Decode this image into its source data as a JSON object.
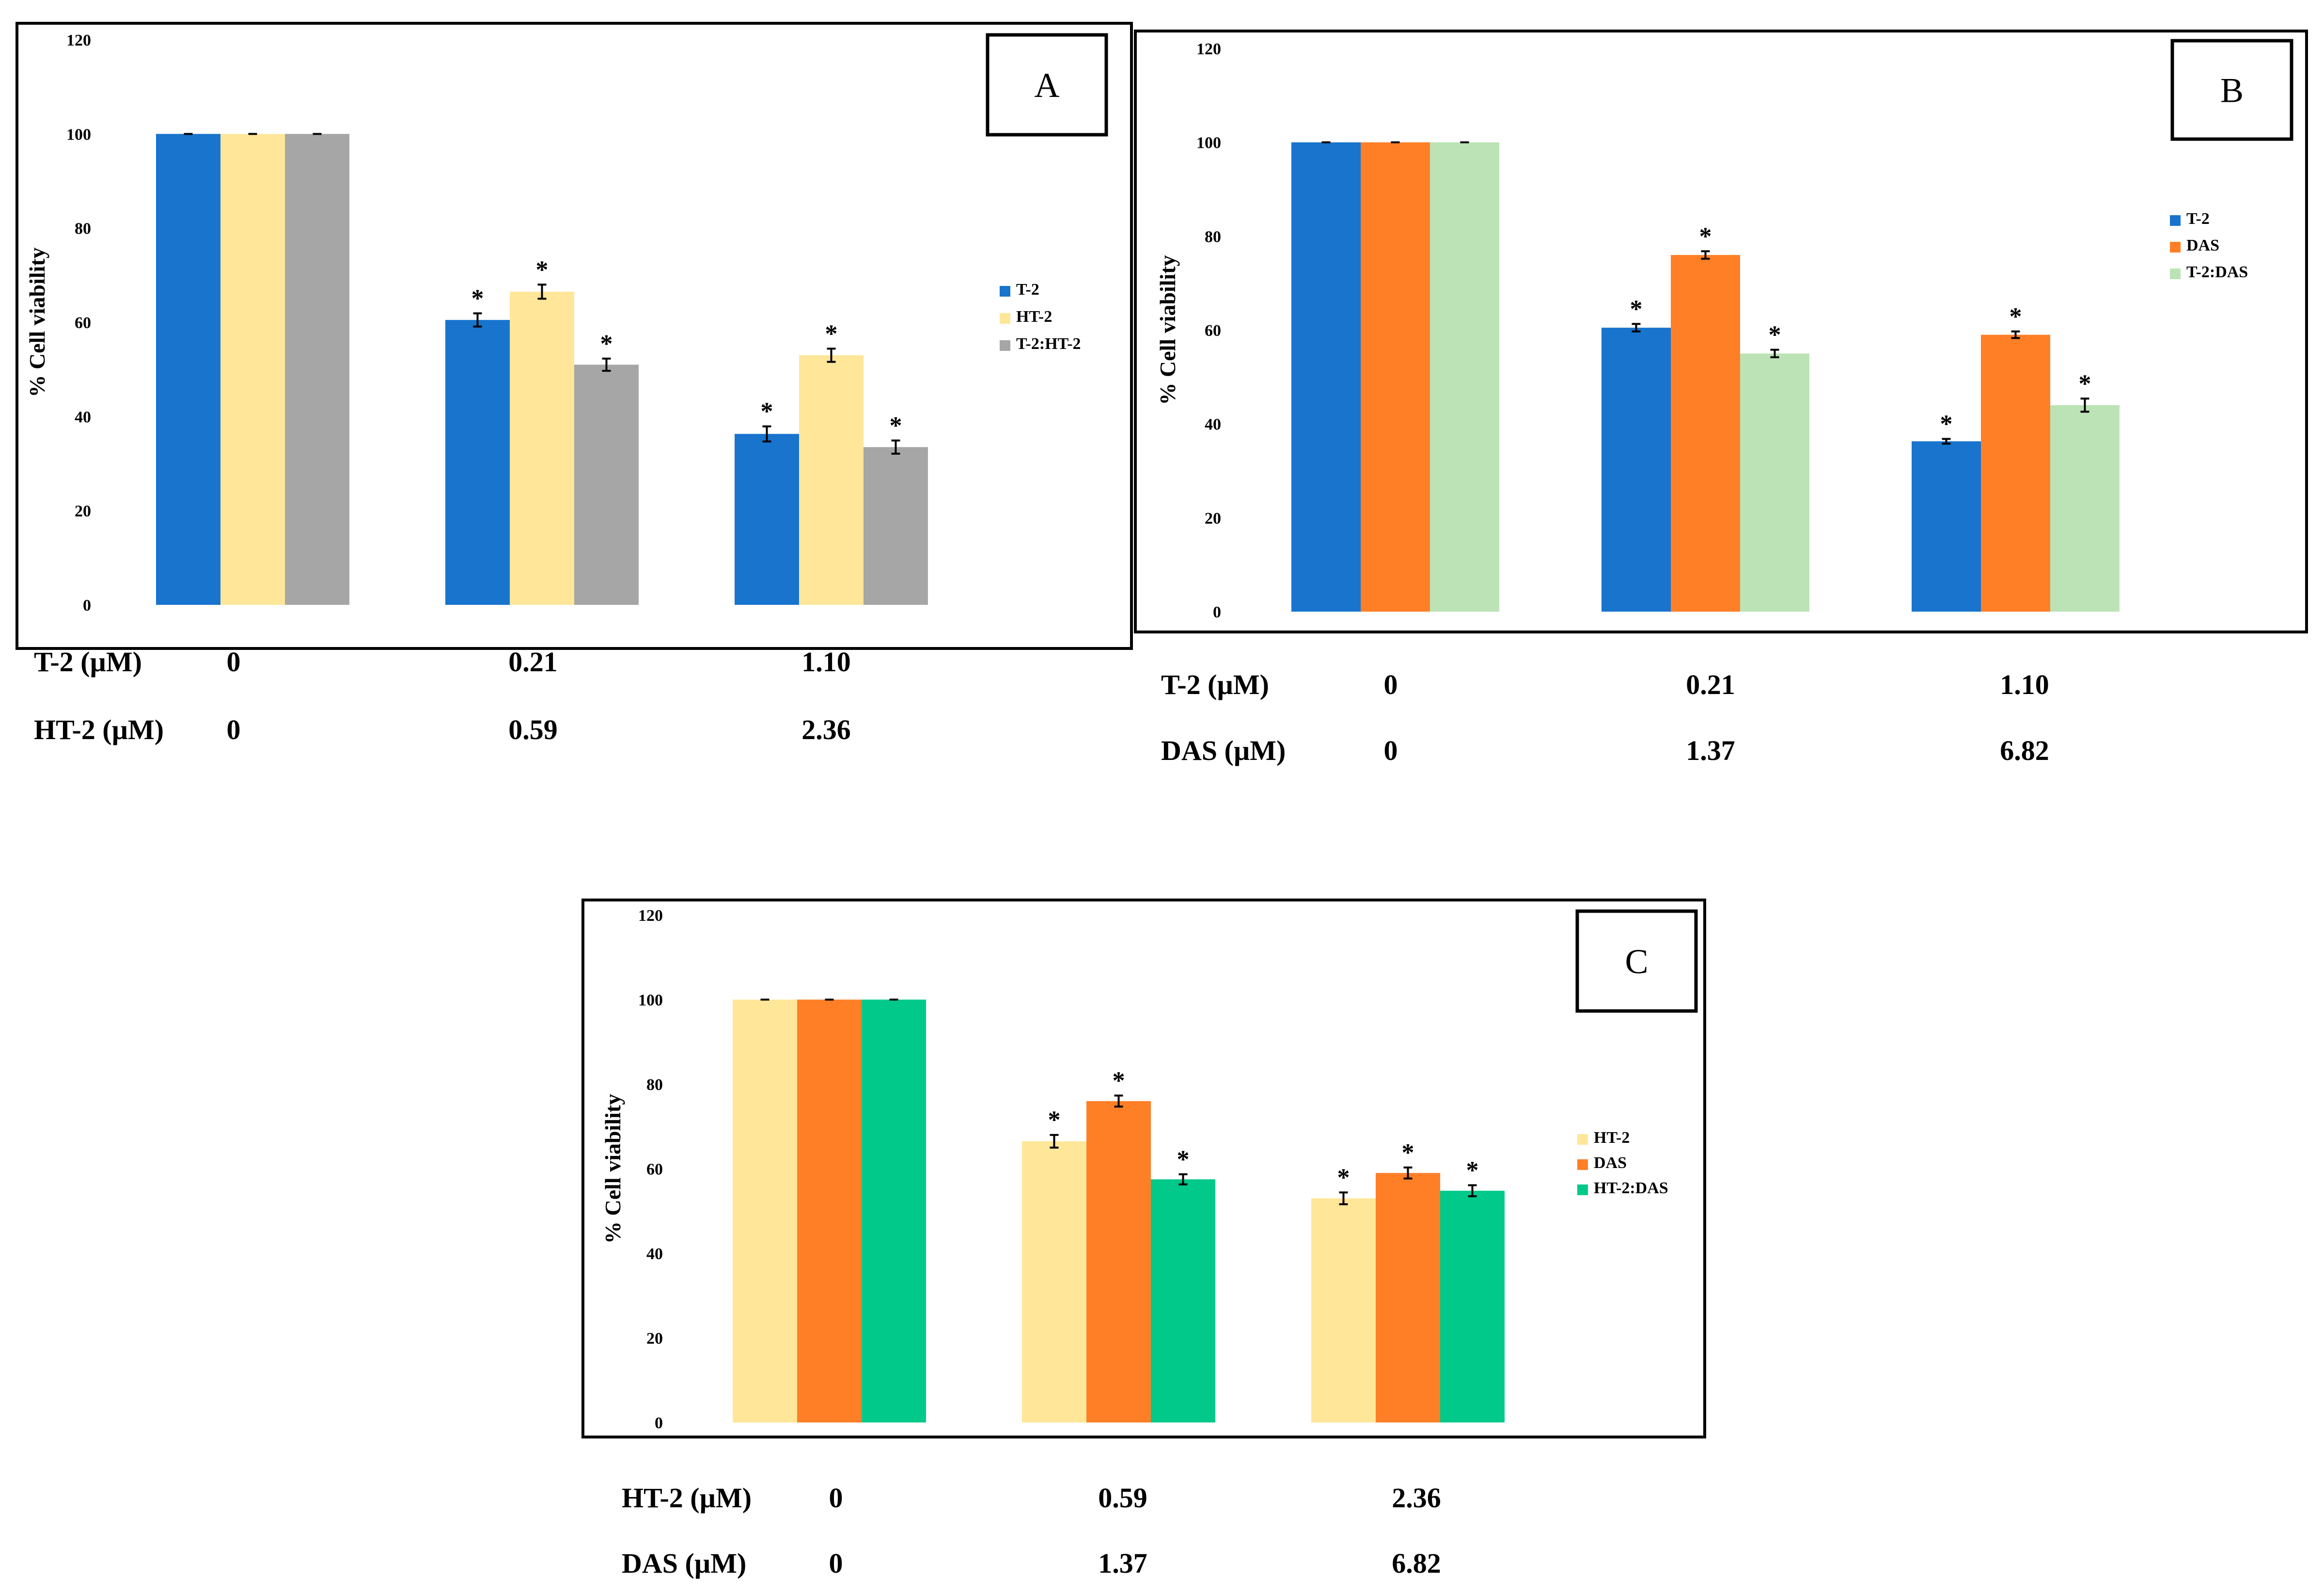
{
  "y_axis_label": "% Cell viability",
  "chart_data": [
    {
      "type": "bar",
      "panel": "A",
      "ylim": [
        0,
        120
      ],
      "yticks": [
        "0",
        "20",
        "40",
        "60",
        "80",
        "100",
        "120"
      ],
      "categories": [
        "0",
        "0.21",
        "1.10"
      ],
      "series": [
        {
          "name": "T-2",
          "color": "#1874CD",
          "values": [
            100,
            60.5,
            36.3
          ],
          "errors": [
            0,
            1.4,
            1.6
          ],
          "significant": [
            false,
            true,
            true
          ]
        },
        {
          "name": "HT-2",
          "color": "#FFE699",
          "values": [
            100,
            66.5,
            53.0
          ],
          "errors": [
            0,
            1.5,
            1.4
          ],
          "significant": [
            false,
            true,
            true
          ]
        },
        {
          "name": "T-2:HT-2",
          "color": "#A6A6A6",
          "values": [
            100,
            51.0,
            33.5
          ],
          "errors": [
            0,
            1.3,
            1.4
          ],
          "significant": [
            false,
            true,
            true
          ]
        }
      ],
      "dose_rows": [
        {
          "label": "T-2 (µM)",
          "values": [
            "0",
            "0.21",
            "1.10"
          ]
        },
        {
          "label": "HT-2 (µM)",
          "values": [
            "0",
            "0.59",
            "2.36"
          ]
        }
      ]
    },
    {
      "type": "bar",
      "panel": "B",
      "ylim": [
        0,
        120
      ],
      "yticks": [
        "0",
        "20",
        "40",
        "60",
        "80",
        "100",
        "120"
      ],
      "categories": [
        "0",
        "0.21",
        "1.10"
      ],
      "series": [
        {
          "name": "T-2",
          "color": "#1874CD",
          "values": [
            100,
            60.5,
            36.3
          ],
          "errors": [
            0,
            0.8,
            0.5
          ],
          "significant": [
            false,
            true,
            true
          ]
        },
        {
          "name": "DAS",
          "color": "#FF7F27",
          "values": [
            100,
            76.0,
            59.0
          ],
          "errors": [
            0,
            0.8,
            0.7
          ],
          "significant": [
            false,
            true,
            true
          ]
        },
        {
          "name": "T-2:DAS",
          "color": "#BBE3B5",
          "values": [
            100,
            55.0,
            44.0
          ],
          "errors": [
            0,
            0.8,
            1.4
          ],
          "significant": [
            false,
            true,
            true
          ]
        }
      ],
      "dose_rows": [
        {
          "label": "T-2 (µM)",
          "values": [
            "0",
            "0.21",
            "1.10"
          ]
        },
        {
          "label": "DAS (µM)",
          "values": [
            "0",
            "1.37",
            "6.82"
          ]
        }
      ]
    },
    {
      "type": "bar",
      "panel": "C",
      "ylim": [
        0,
        120
      ],
      "yticks": [
        "0",
        "20",
        "40",
        "60",
        "80",
        "100",
        "120"
      ],
      "categories": [
        "0",
        "0.59",
        "2.36"
      ],
      "series": [
        {
          "name": "HT-2",
          "color": "#FFE699",
          "values": [
            100,
            66.5,
            53.0
          ],
          "errors": [
            0,
            1.5,
            1.4
          ],
          "significant": [
            false,
            true,
            true
          ]
        },
        {
          "name": "DAS",
          "color": "#FF7F27",
          "values": [
            100,
            76.0,
            59.0
          ],
          "errors": [
            0,
            1.3,
            1.3
          ],
          "significant": [
            false,
            true,
            true
          ]
        },
        {
          "name": "HT-2:DAS",
          "color": "#00C98A",
          "values": [
            100,
            57.5,
            54.8
          ],
          "errors": [
            0,
            1.2,
            1.3
          ],
          "significant": [
            false,
            true,
            true
          ]
        }
      ],
      "dose_rows": [
        {
          "label": "HT-2 (µM)",
          "values": [
            "0",
            "0.59",
            "2.36"
          ]
        },
        {
          "label": "DAS (µM)",
          "values": [
            "0",
            "1.37",
            "6.82"
          ]
        }
      ]
    }
  ]
}
